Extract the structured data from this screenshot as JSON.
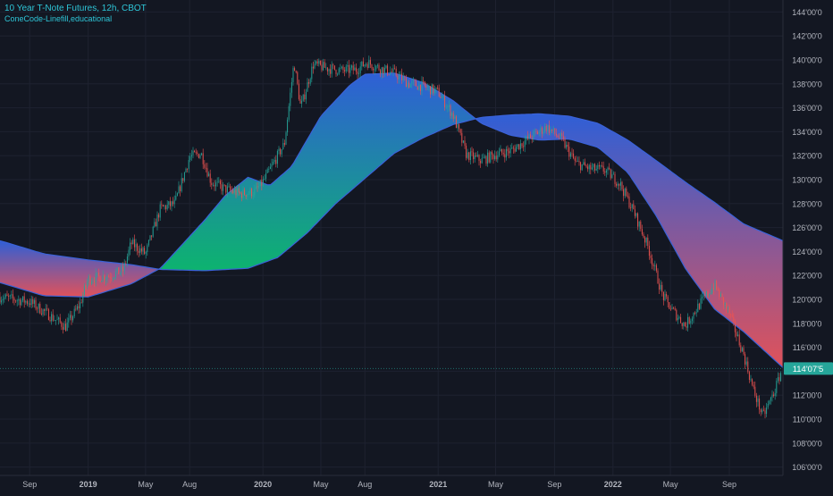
{
  "header": {
    "symbol_title": "10 Year T-Note Futures, 12h, CBOT",
    "indicator_name": "ConeCode-Linefill,educational"
  },
  "price_tag": {
    "label": "114'07'5",
    "value": 114.23,
    "color": "#26a69a"
  },
  "colors": {
    "background": "#131722",
    "grid": "#1e2230",
    "axis_text": "#b2b5be",
    "band_edge": "#3a62d8",
    "fill_blue": "#2f5fd6",
    "fill_green": "#0db36f",
    "fill_red": "#e0525a",
    "candle_up": "#26a69a",
    "candle_down": "#ef5350"
  },
  "chart_data": {
    "type": "line",
    "title": "",
    "xlabel": "",
    "ylabel": "",
    "x_tick_labels": [
      "Sep",
      "2019",
      "May",
      "Aug",
      "2020",
      "May",
      "Aug",
      "2021",
      "May",
      "Sep",
      "2022",
      "May",
      "Sep"
    ],
    "x_tick_dates": [
      "2018-09-01",
      "2019-01-01",
      "2019-05-01",
      "2019-08-01",
      "2020-01-01",
      "2020-05-01",
      "2020-08-01",
      "2021-01-01",
      "2021-05-01",
      "2021-09-01",
      "2022-01-01",
      "2022-05-01",
      "2022-09-01"
    ],
    "xlim": [
      "2018-07-01",
      "2022-12-22"
    ],
    "y_tick_labels": [
      "106'00'0",
      "108'00'0",
      "110'00'0",
      "112'00'0",
      "114'00'0",
      "116'00'0",
      "118'00'0",
      "120'00'0",
      "122'00'0",
      "124'00'0",
      "126'00'0",
      "128'00'0",
      "130'00'0",
      "132'00'0",
      "134'00'0",
      "136'00'0",
      "138'00'0",
      "140'00'0",
      "142'00'0",
      "144'00'0"
    ],
    "y_tick_values": [
      106,
      108,
      110,
      112,
      114,
      116,
      118,
      120,
      122,
      124,
      126,
      128,
      130,
      132,
      134,
      136,
      138,
      140,
      142,
      144
    ],
    "ylim": [
      105.3,
      145
    ],
    "grid": true,
    "series": [
      {
        "name": "",
        "role": "price",
        "x": [
          "2018-07-01",
          "2018-09-01",
          "2018-10-15",
          "2018-11-15",
          "2018-12-15",
          "2019-01-01",
          "2019-02-15",
          "2019-03-15",
          "2019-04-01",
          "2019-05-01",
          "2019-06-01",
          "2019-07-01",
          "2019-08-01",
          "2019-08-25",
          "2019-09-15",
          "2019-10-15",
          "2019-11-15",
          "2019-12-15",
          "2020-01-01",
          "2020-02-15",
          "2020-03-06",
          "2020-03-20",
          "2020-04-15",
          "2020-05-15",
          "2020-06-15",
          "2020-07-15",
          "2020-08-05",
          "2020-09-01",
          "2020-10-01",
          "2020-11-01",
          "2020-12-01",
          "2021-01-01",
          "2021-02-01",
          "2021-03-01",
          "2021-04-01",
          "2021-05-01",
          "2021-06-01",
          "2021-07-15",
          "2021-08-15",
          "2021-09-15",
          "2021-10-15",
          "2021-11-15",
          "2021-12-15",
          "2022-01-15",
          "2022-02-15",
          "2022-03-15",
          "2022-04-15",
          "2022-05-01",
          "2022-06-01",
          "2022-07-01",
          "2022-08-01",
          "2022-09-01",
          "2022-10-01",
          "2022-10-20",
          "2022-11-10",
          "2022-12-05",
          "2022-12-20"
        ],
        "y": [
          120.2,
          119.8,
          118.6,
          117.7,
          119.6,
          121.7,
          122.0,
          122.4,
          124.7,
          123.8,
          127.6,
          128.0,
          131.9,
          132.2,
          129.8,
          129.2,
          128.8,
          129.0,
          129.8,
          133.0,
          139.8,
          136.0,
          139.6,
          139.3,
          139.1,
          139.2,
          139.8,
          139.3,
          138.9,
          138.0,
          137.8,
          137.3,
          135.4,
          132.1,
          131.6,
          132.1,
          132.4,
          133.6,
          134.4,
          133.4,
          131.4,
          130.9,
          130.8,
          129.7,
          127.2,
          124.4,
          120.3,
          119.3,
          117.8,
          119.6,
          121.2,
          118.8,
          115.4,
          112.6,
          110.2,
          112.4,
          114.2
        ]
      },
      {
        "name": "",
        "role": "slow_line",
        "x": [
          "2018-07-01",
          "2018-10-01",
          "2019-01-01",
          "2019-04-01",
          "2019-06-01",
          "2019-09-01",
          "2019-12-01",
          "2020-02-01",
          "2020-04-01",
          "2020-06-01",
          "2020-08-01",
          "2020-10-01",
          "2020-12-01",
          "2021-02-01",
          "2021-04-01",
          "2021-06-01",
          "2021-08-01",
          "2021-10-01",
          "2021-12-01",
          "2022-02-01",
          "2022-04-01",
          "2022-06-01",
          "2022-08-01",
          "2022-10-01",
          "2022-12-22"
        ],
        "y": [
          124.9,
          123.8,
          123.3,
          122.9,
          122.5,
          122.4,
          122.6,
          123.5,
          125.5,
          128.0,
          130.1,
          132.2,
          133.5,
          134.6,
          135.2,
          135.4,
          135.5,
          135.3,
          134.7,
          133.3,
          131.6,
          129.8,
          128.1,
          126.3,
          124.9
        ]
      },
      {
        "name": "",
        "role": "fast_line",
        "x": [
          "2018-07-01",
          "2018-10-01",
          "2019-01-01",
          "2019-04-01",
          "2019-06-01",
          "2019-09-01",
          "2019-10-15",
          "2019-12-01",
          "2020-01-15",
          "2020-03-01",
          "2020-05-01",
          "2020-07-01",
          "2020-08-01",
          "2020-10-01",
          "2020-12-01",
          "2021-02-01",
          "2021-04-01",
          "2021-06-01",
          "2021-08-01",
          "2021-10-01",
          "2021-12-01",
          "2022-02-01",
          "2022-04-01",
          "2022-06-01",
          "2022-08-01",
          "2022-10-01",
          "2022-12-22"
        ],
        "y": [
          121.4,
          120.3,
          120.2,
          121.3,
          122.6,
          126.6,
          128.7,
          130.2,
          129.5,
          131.1,
          135.3,
          137.9,
          138.8,
          138.9,
          138.1,
          136.6,
          134.7,
          133.7,
          133.3,
          133.4,
          132.7,
          130.6,
          127.0,
          122.6,
          119.2,
          117.3,
          114.3
        ]
      }
    ]
  }
}
